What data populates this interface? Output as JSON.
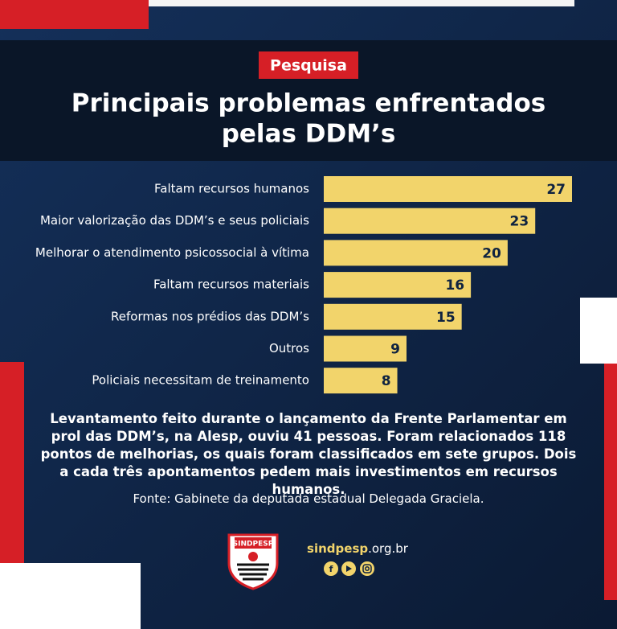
{
  "badge": "Pesquisa",
  "chart_data": {
    "type": "bar",
    "orientation": "horizontal",
    "title": [
      "Principais problemas enfrentados",
      "pelas DDM’s"
    ],
    "categories": [
      "Faltam recursos humanos",
      "Maior valorização das DDM’s e seus policiais",
      "Melhorar o atendimento psicossocial à vítima",
      "Faltam recursos materiais",
      "Reformas nos prédios das DDM’s",
      "Outros",
      "Policiais necessitam de treinamento"
    ],
    "values": [
      27,
      23,
      20,
      16,
      15,
      9,
      8
    ],
    "color": "#f2d46b"
  },
  "description": "Levantamento feito durante o lançamento da Frente Parlamentar em prol das DDM’s, na Alesp, ouviu 41 pessoas. Foram relacionados 118 pontos de melhorias, os quais foram classificados em sete grupos. Dois a cada três apontamentos pedem mais investimentos em recursos humanos.",
  "source": "Fonte: Gabinete da deputada estadual Delegada Graciela.",
  "footer": {
    "logo_text": "SINDPESP",
    "website_name": "sindpesp",
    "website_domain": ".org.br"
  }
}
